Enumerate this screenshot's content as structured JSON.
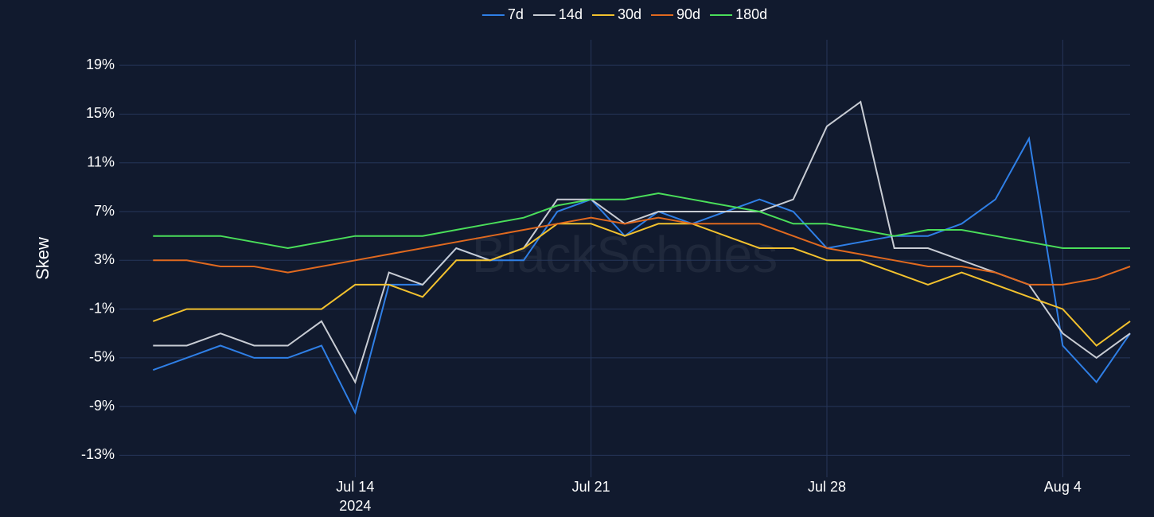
{
  "chart_data": {
    "type": "line",
    "watermark": "BlackScholes",
    "y_label": "Skew",
    "x": [
      "2024-07-08",
      "2024-07-09",
      "2024-07-10",
      "2024-07-11",
      "2024-07-12",
      "2024-07-13",
      "2024-07-14",
      "2024-07-15",
      "2024-07-16",
      "2024-07-17",
      "2024-07-18",
      "2024-07-19",
      "2024-07-20",
      "2024-07-21",
      "2024-07-22",
      "2024-07-23",
      "2024-07-24",
      "2024-07-25",
      "2024-07-26",
      "2024-07-27",
      "2024-07-28",
      "2024-07-29",
      "2024-07-30",
      "2024-07-31",
      "2024-08-01",
      "2024-08-02",
      "2024-08-03",
      "2024-08-04",
      "2024-08-05",
      "2024-08-06"
    ],
    "series": [
      {
        "name": "7d",
        "color": "#2f7fe6",
        "values": [
          -6,
          -5,
          -4,
          -5,
          -5,
          -4,
          -9.5,
          1,
          1,
          4,
          3,
          3,
          7,
          8,
          5,
          7,
          6,
          7,
          8,
          7,
          4,
          4.5,
          5,
          5,
          6,
          8,
          13,
          -4,
          -7,
          -3
        ]
      },
      {
        "name": "14d",
        "color": "#c8ccd4",
        "values": [
          -4,
          -4,
          -3,
          -4,
          -4,
          -2,
          -7,
          2,
          1,
          4,
          3,
          4,
          8,
          8,
          6,
          7,
          7,
          7,
          7,
          8,
          14,
          16,
          4,
          4,
          3,
          2,
          1,
          -3,
          -5,
          -3
        ]
      },
      {
        "name": "30d",
        "color": "#f2c12e",
        "values": [
          -2,
          -1,
          -1,
          -1,
          -1,
          -1,
          1,
          1,
          0,
          3,
          3,
          4,
          6,
          6,
          5,
          6,
          6,
          5,
          4,
          4,
          3,
          3,
          2,
          1,
          2,
          1,
          0,
          -1,
          -4,
          -2
        ]
      },
      {
        "name": "90d",
        "color": "#e0691f",
        "values": [
          3,
          3,
          2.5,
          2.5,
          2,
          2.5,
          3,
          3.5,
          4,
          4.5,
          5,
          5.5,
          6,
          6.5,
          6,
          6.5,
          6,
          6,
          6,
          5,
          4,
          3.5,
          3,
          2.5,
          2.5,
          2,
          1,
          1,
          1.5,
          2.5
        ]
      },
      {
        "name": "180d",
        "color": "#4ade5a",
        "values": [
          5,
          5,
          5,
          4.5,
          4,
          4.5,
          5,
          5,
          5,
          5.5,
          6,
          6.5,
          7.5,
          8,
          8,
          8.5,
          8,
          7.5,
          7,
          6,
          6,
          5.5,
          5,
          5.5,
          5.5,
          5,
          4.5,
          4,
          4,
          4
        ]
      }
    ],
    "xlim": [
      "2024-07-07",
      "2024-08-06"
    ],
    "xticks": [
      {
        "value": "2024-07-14",
        "label": "Jul 14\n2024"
      },
      {
        "value": "2024-07-21",
        "label": "Jul 21"
      },
      {
        "value": "2024-07-28",
        "label": "Jul 28"
      },
      {
        "value": "2024-08-04",
        "label": "Aug 4"
      }
    ],
    "ylim": [
      -14.8,
      21.1
    ],
    "yticks": [
      {
        "value": 19,
        "label": "19%"
      },
      {
        "value": 15,
        "label": "15%"
      },
      {
        "value": 11,
        "label": "11%"
      },
      {
        "value": 7,
        "label": "7%"
      },
      {
        "value": 3,
        "label": "3%"
      },
      {
        "value": -1,
        "label": "-1%"
      },
      {
        "value": -5,
        "label": "-5%"
      },
      {
        "value": -9,
        "label": "-9%"
      },
      {
        "value": -13,
        "label": "-13%"
      }
    ],
    "grid": true,
    "legend": "top"
  }
}
